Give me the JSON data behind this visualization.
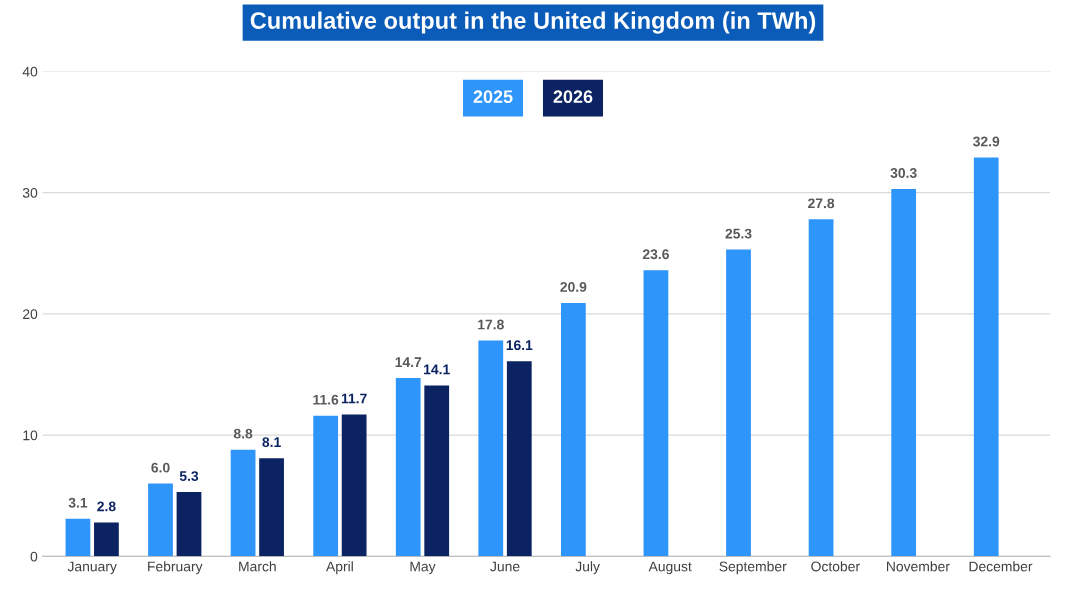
{
  "chart_data": {
    "type": "bar",
    "title": "Cumulative output in the United Kingdom (in TWh)",
    "categories": [
      "January",
      "February",
      "March",
      "April",
      "May",
      "June",
      "July",
      "August",
      "September",
      "October",
      "November",
      "December"
    ],
    "series": [
      {
        "name": "2025",
        "color": "#2e95fb",
        "values": [
          3.1,
          6.0,
          8.8,
          11.6,
          14.7,
          17.8,
          20.9,
          23.6,
          25.3,
          27.8,
          30.3,
          32.9
        ],
        "value_labels": [
          "3.1",
          "6.0",
          "8.8",
          "11.6",
          "14.7",
          "17.8",
          "20.9",
          "23.6",
          "25.3",
          "27.8",
          "30.3",
          "32.9"
        ]
      },
      {
        "name": "2026",
        "color": "#0b2362",
        "values": [
          2.8,
          5.3,
          8.1,
          11.7,
          14.1,
          16.1,
          null,
          null,
          null,
          null,
          null,
          null
        ],
        "value_labels": [
          "2.8",
          "5.3",
          "8.1",
          "11.7",
          "14.1",
          "16.1",
          null,
          null,
          null,
          null,
          null,
          null
        ]
      }
    ],
    "ylim": [
      0,
      40
    ],
    "yticks": [
      0,
      10,
      20,
      30,
      40
    ],
    "grid": "y",
    "legend": "top"
  }
}
